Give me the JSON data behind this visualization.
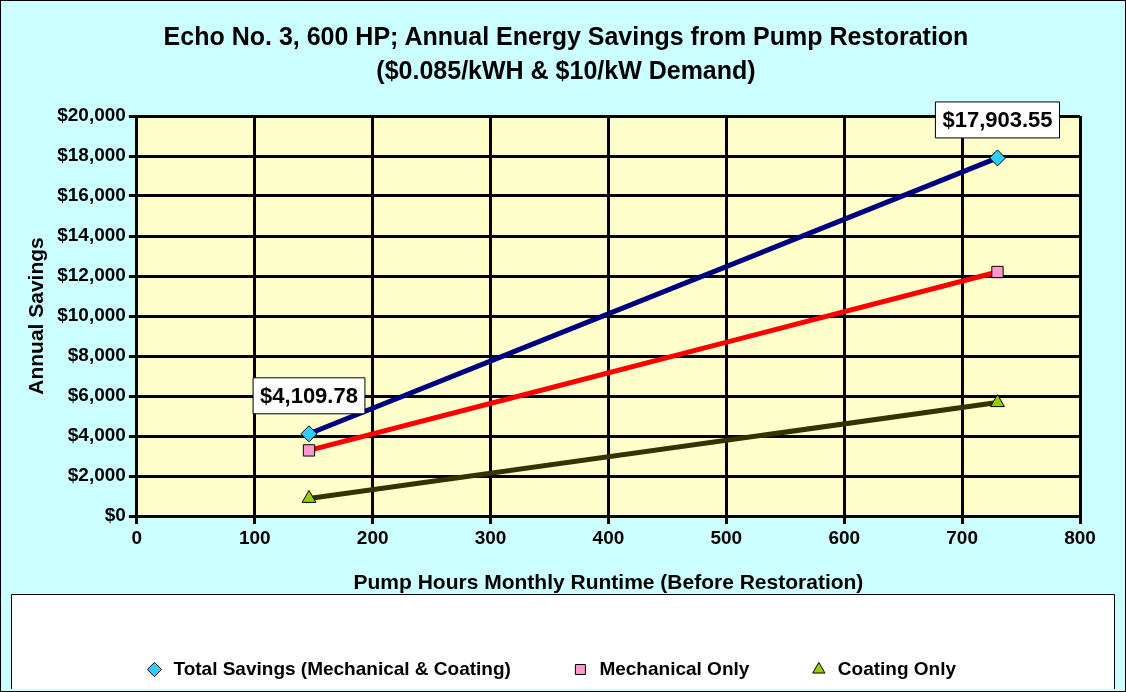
{
  "chart_data": {
    "type": "line",
    "title": "Echo No. 3, 600 HP; Annual Energy Savings from Pump Restoration  ($0.085/kWH & $10/kW Demand)",
    "xlabel": "Pump Hours Monthly Runtime (Before Restoration)",
    "ylabel": "Annual Savings",
    "x": [
      146,
      730
    ],
    "series": [
      {
        "name": "Total Savings (Mechanical & Coating)",
        "color": "#000080",
        "colors": [
          "#33ccff",
          "#33ccff"
        ],
        "marker": "diamond",
        "values": [
          4109.78,
          17903.55
        ],
        "value_labels": [
          "$4,109.78",
          "$17,903.55"
        ]
      },
      {
        "name": "Mechanical Only",
        "color": "#ff0000",
        "colors": [
          "#ff99cc",
          "#ff99cc"
        ],
        "marker": "square",
        "values": [
          3280,
          12200
        ]
      },
      {
        "name": "Coating Only",
        "color": "#333300",
        "colors": [
          "#99cc00",
          "#99cc00"
        ],
        "marker": "triangle",
        "values": [
          880,
          5670
        ]
      }
    ],
    "xlim": [
      0,
      800
    ],
    "xticks": [
      0,
      100,
      200,
      300,
      400,
      500,
      600,
      700,
      800
    ],
    "ylim": [
      0,
      20000
    ],
    "yticks": [
      {
        "value": 0,
        "label": "$0"
      },
      {
        "value": 2000,
        "label": "$2,000"
      },
      {
        "value": 4000,
        "label": "$4,000"
      },
      {
        "value": 6000,
        "label": "$6,000"
      },
      {
        "value": 8000,
        "label": "$8,000"
      },
      {
        "value": 10000,
        "label": "$10,000"
      },
      {
        "value": 12000,
        "label": "$12,000"
      },
      {
        "value": 14000,
        "label": "$14,000"
      },
      {
        "value": 16000,
        "label": "$16,000"
      },
      {
        "value": 18000,
        "label": "$18,000"
      },
      {
        "value": 20000,
        "label": "$20,000"
      }
    ],
    "grid": true,
    "legend": "bottom"
  }
}
